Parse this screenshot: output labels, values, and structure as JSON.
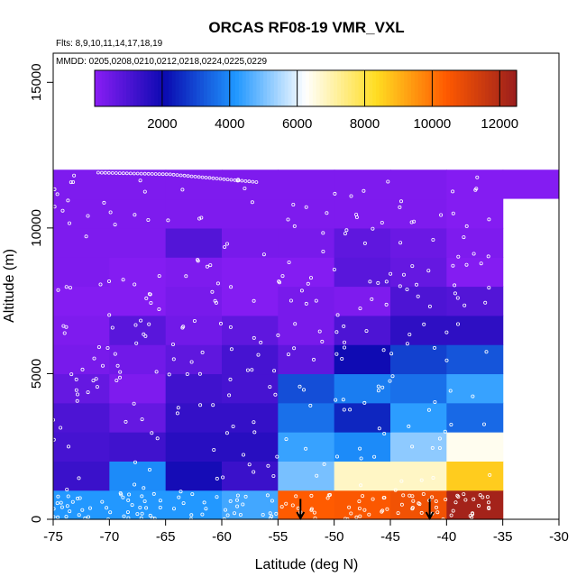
{
  "chart_data": {
    "type": "heatmap",
    "title": "ORCAS RF08-19 VMR_VXL",
    "flights_note": "Flts: 8,9,10,11,14,17,18,19",
    "dates_note": "MMDD: 0205,0208,0210,0212,0218,0224,0225,0229",
    "xlabel": "Latitude (deg N)",
    "ylabel": "Altitude (m)",
    "xlim": [
      -75,
      -30
    ],
    "ylim": [
      0,
      16000
    ],
    "x_ticks": [
      -75,
      -70,
      -65,
      -60,
      -55,
      -50,
      -45,
      -40,
      -35,
      -30
    ],
    "y_ticks": [
      0,
      5000,
      10000,
      15000
    ],
    "colorbar": {
      "range": [
        0,
        12500
      ],
      "ticks": [
        2000,
        4000,
        6000,
        8000,
        10000,
        12000
      ],
      "colors": [
        "#8a1df5",
        "#0a0ab0",
        "#1e96ff",
        "#ffffff",
        "#ffdd22",
        "#ff5a00",
        "#9a1d1d"
      ]
    },
    "lat_bins": [
      -75,
      -70,
      -65,
      -60,
      -55,
      -50,
      -45,
      -40,
      -35
    ],
    "alt_bins": [
      0,
      1000,
      2000,
      3000,
      4000,
      5000,
      6000,
      7000,
      8000,
      9000,
      10000,
      11000
    ],
    "cells": [
      [
        4200,
        4200,
        4200,
        4500,
        10400,
        10500,
        10700,
        12300
      ],
      [
        1300,
        4000,
        1900,
        1300,
        5000,
        6800,
        6800,
        8600
      ],
      [
        1100,
        1200,
        1600,
        1600,
        4400,
        4000,
        5200,
        6400
      ],
      [
        1000,
        600,
        1400,
        1400,
        3600,
        2500,
        4300,
        3500
      ],
      [
        600,
        200,
        1200,
        1100,
        3100,
        3800,
        3600,
        4400
      ],
      [
        300,
        400,
        700,
        1100,
        700,
        2000,
        2900,
        3200
      ],
      [
        200,
        800,
        400,
        700,
        300,
        1000,
        1500,
        1500
      ],
      [
        100,
        100,
        300,
        100,
        300,
        200,
        1000,
        900
      ],
      [
        200,
        100,
        200,
        100,
        100,
        800,
        600,
        100
      ],
      [
        200,
        200,
        900,
        300,
        300,
        700,
        500,
        200
      ],
      [
        200,
        200,
        200,
        200,
        200,
        200,
        200,
        100
      ],
      [
        200,
        200,
        200,
        200,
        200,
        200,
        200,
        100
      ]
    ],
    "extra_cell": {
      "lat": [
        -35,
        -30
      ],
      "alt": [
        11000,
        12000
      ],
      "value": 100
    },
    "arrows_latitude": [
      -53,
      -41.5
    ]
  }
}
